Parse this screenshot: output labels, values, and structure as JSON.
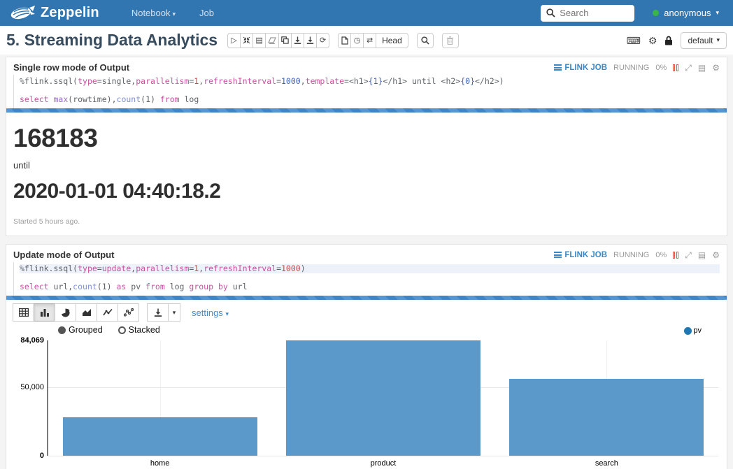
{
  "navbar": {
    "brand": "Zeppelin",
    "items": [
      {
        "label": "Notebook",
        "has_caret": true
      },
      {
        "label": "Job",
        "has_caret": false
      }
    ],
    "search_placeholder": "Search",
    "user": "anonymous"
  },
  "icons": {
    "caret": "▾",
    "gear": "⚙",
    "keyboard": "⌨",
    "swap": "⇄",
    "refresh": "⟳",
    "play": "▷",
    "book": "▤",
    "clock": "◷",
    "expand": "⤢",
    "shrink": "⤡"
  },
  "note": {
    "title": "5. Streaming Data Analytics",
    "head_label": "Head",
    "interpreter_binding": "default"
  },
  "paragraphs": [
    {
      "title": "Single row mode of Output",
      "job": {
        "link": "FLINK JOB",
        "status": "RUNNING",
        "progress": "0%"
      },
      "code": [
        [
          {
            "t": "%flink.ssql(",
            "c": "pl"
          },
          {
            "t": "type",
            "c": "kw"
          },
          {
            "t": "=",
            "c": "pl"
          },
          {
            "t": "single",
            "c": "pl"
          },
          {
            "t": ",",
            "c": "pl"
          },
          {
            "t": "parallelism",
            "c": "kw"
          },
          {
            "t": "=",
            "c": "pl"
          },
          {
            "t": "1",
            "c": "nr"
          },
          {
            "t": ",",
            "c": "pl"
          },
          {
            "t": "refreshInterval",
            "c": "kw"
          },
          {
            "t": "=",
            "c": "pl"
          },
          {
            "t": "1000",
            "c": "nb"
          },
          {
            "t": ",",
            "c": "pl"
          },
          {
            "t": "template",
            "c": "kw"
          },
          {
            "t": "=<h1>",
            "c": "pl"
          },
          {
            "t": "{1}",
            "c": "nb"
          },
          {
            "t": "</h1> until <h2>",
            "c": "pl"
          },
          {
            "t": "{0}",
            "c": "nb"
          },
          {
            "t": "</h2>)",
            "c": "pl"
          }
        ],
        [],
        [
          {
            "t": "select",
            "c": "kw"
          },
          {
            "t": " ",
            "c": "pl"
          },
          {
            "t": "max",
            "c": "fp"
          },
          {
            "t": "(rowtime),",
            "c": "pl"
          },
          {
            "t": "count",
            "c": "fb"
          },
          {
            "t": "(1) ",
            "c": "pl"
          },
          {
            "t": "from",
            "c": "kw"
          },
          {
            "t": " log",
            "c": "pl"
          }
        ]
      ],
      "output": {
        "big_number": "168183",
        "until_label": "until",
        "timestamp": "2020-01-01 04:40:18.2",
        "started": "Started 5 hours ago."
      }
    },
    {
      "title": "Update mode of Output",
      "job": {
        "link": "FLINK JOB",
        "status": "RUNNING",
        "progress": "0%"
      },
      "code": [
        [
          {
            "t": "%flink.ssql(",
            "c": "pl"
          },
          {
            "t": "type",
            "c": "kw"
          },
          {
            "t": "=",
            "c": "pl"
          },
          {
            "t": "update",
            "c": "kw"
          },
          {
            "t": ",",
            "c": "pl"
          },
          {
            "t": "parallelism",
            "c": "kw"
          },
          {
            "t": "=",
            "c": "pl"
          },
          {
            "t": "1",
            "c": "nr"
          },
          {
            "t": ",",
            "c": "pl"
          },
          {
            "t": "refreshInterval",
            "c": "kw"
          },
          {
            "t": "=",
            "c": "pl"
          },
          {
            "t": "1000",
            "c": "nr"
          },
          {
            "t": ")",
            "c": "pl"
          }
        ],
        [],
        [
          {
            "t": "select",
            "c": "kw"
          },
          {
            "t": " url,",
            "c": "pl"
          },
          {
            "t": "count",
            "c": "fb"
          },
          {
            "t": "(1) ",
            "c": "pl"
          },
          {
            "t": "as",
            "c": "kw"
          },
          {
            "t": " pv ",
            "c": "pl"
          },
          {
            "t": "from",
            "c": "kw"
          },
          {
            "t": " log ",
            "c": "pl"
          },
          {
            "t": "group",
            "c": "kw"
          },
          {
            "t": " ",
            "c": "pl"
          },
          {
            "t": "by",
            "c": "kw"
          },
          {
            "t": " url",
            "c": "pl"
          }
        ]
      ],
      "settings_label": "settings"
    }
  ],
  "chart_data": {
    "type": "bar",
    "categories": [
      "home",
      "product",
      "search"
    ],
    "series": [
      {
        "name": "pv",
        "values": [
          28000,
          84069,
          56000
        ]
      }
    ],
    "title": "",
    "xlabel": "",
    "ylabel": "",
    "ylim": [
      0,
      84069
    ],
    "yticks": [
      {
        "value": 0,
        "label": "0"
      },
      {
        "value": 50000,
        "label": "50,000"
      },
      {
        "value": 84069,
        "label": "84,069"
      }
    ],
    "grid": true,
    "legend_position": "top-right",
    "bar_color": "#5b99ca",
    "legend_color": "#1f77b4",
    "mode_options": [
      "Grouped",
      "Stacked"
    ],
    "mode_selected": "Grouped"
  }
}
